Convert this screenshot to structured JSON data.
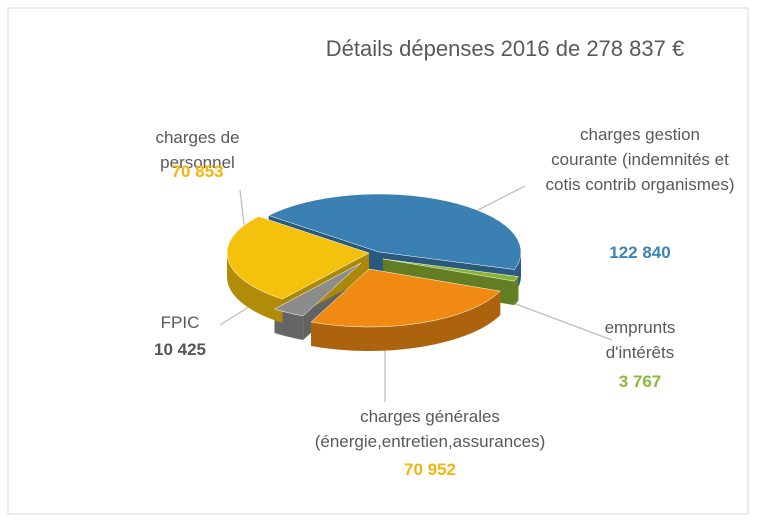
{
  "chart_data": {
    "type": "pie",
    "title": "Détails dépenses 2016 de 278 837 €",
    "categories": [
      "charges gestion courante (indemnités et cotis contrib organismes)",
      "emprunts d'intérêts",
      "charges générales (énergie,entretien,assurances)",
      "FPIC",
      "charges de personnel"
    ],
    "values": [
      122840,
      3767,
      70952,
      10425,
      70853
    ],
    "value_labels": [
      "122 840",
      "3 767",
      "70 952",
      "10 425",
      "70 853"
    ],
    "colors": [
      "#3b80b3",
      "#8cb230",
      "#f08a12",
      "#8c8c8c",
      "#f4c20d"
    ],
    "label_colors": [
      "#3a84b8",
      "#8ab83a",
      "#f2b50f",
      "#555555",
      "#f2b50f"
    ]
  }
}
